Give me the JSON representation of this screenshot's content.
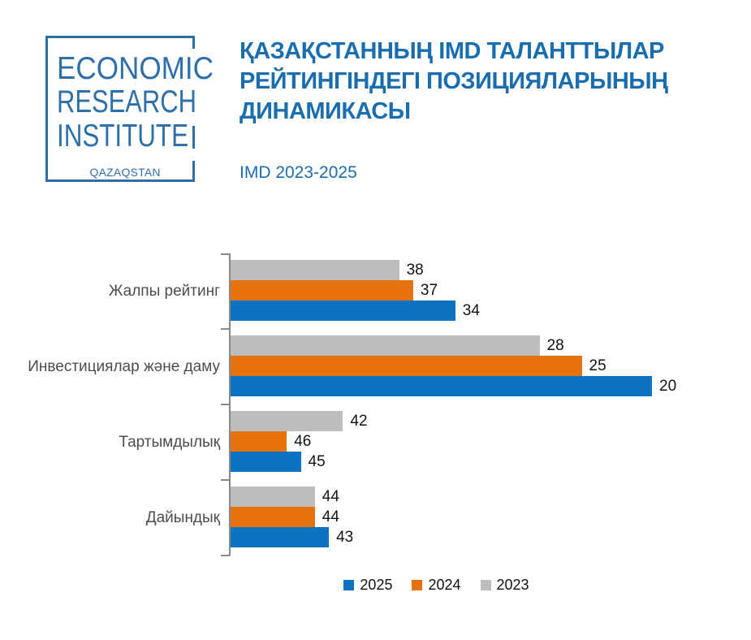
{
  "header": {
    "logo": {
      "line1": "ECONOMIC",
      "line2": "RESEARCH",
      "line3": "INSTITUTE",
      "sub": "QAZAQSTAN"
    },
    "title_lines": [
      "ҚАЗАҚСТАННЫҢ IMD ТАЛАНТТЫЛАР",
      "РЕЙТИНГІНДЕГІ ПОЗИЦИЯЛАРЫНЫҢ",
      "ДИНАМИКАСЫ"
    ],
    "subtitle": "IMD 2023-2025"
  },
  "colors": {
    "title_blue": "#1A6EAD",
    "logo_blue": "#2F6FA8",
    "bar_2025": "#0C72C2",
    "bar_2024": "#E5720C",
    "bar_2023": "#BDBDBD",
    "axis_gray": "#8A8A8A",
    "category_gray": "#4D4D4D",
    "value_black": "#121212"
  },
  "chart_data": {
    "type": "bar",
    "orientation": "horizontal",
    "title": "ҚАЗАҚСТАННЫҢ IMD ТАЛАНТТЫЛАР РЕЙТИНГІНДЕГІ ПОЗИЦИЯЛАРЫНЫҢ ДИНАМИКАСЫ",
    "subtitle": "IMD 2023-2025",
    "categories": [
      "Жалпы рейтинг",
      "Инвестициялар және даму",
      "Тартымдылық",
      "Дайындық"
    ],
    "series": [
      {
        "name": "2025",
        "color": "#0C72C2",
        "values": [
          34,
          20,
          45,
          43
        ]
      },
      {
        "name": "2024",
        "color": "#E5720C",
        "values": [
          37,
          25,
          46,
          44
        ]
      },
      {
        "name": "2023",
        "color": "#BDBDBD",
        "values": [
          38,
          28,
          42,
          44
        ]
      }
    ],
    "bar_order_top_to_bottom": [
      "2023",
      "2024",
      "2025"
    ],
    "value_axis": {
      "baseline": 50,
      "inverted": true
    },
    "data_labels": true,
    "legend": [
      "2025",
      "2024",
      "2023"
    ],
    "legend_position": "bottom-center",
    "grid": false
  }
}
